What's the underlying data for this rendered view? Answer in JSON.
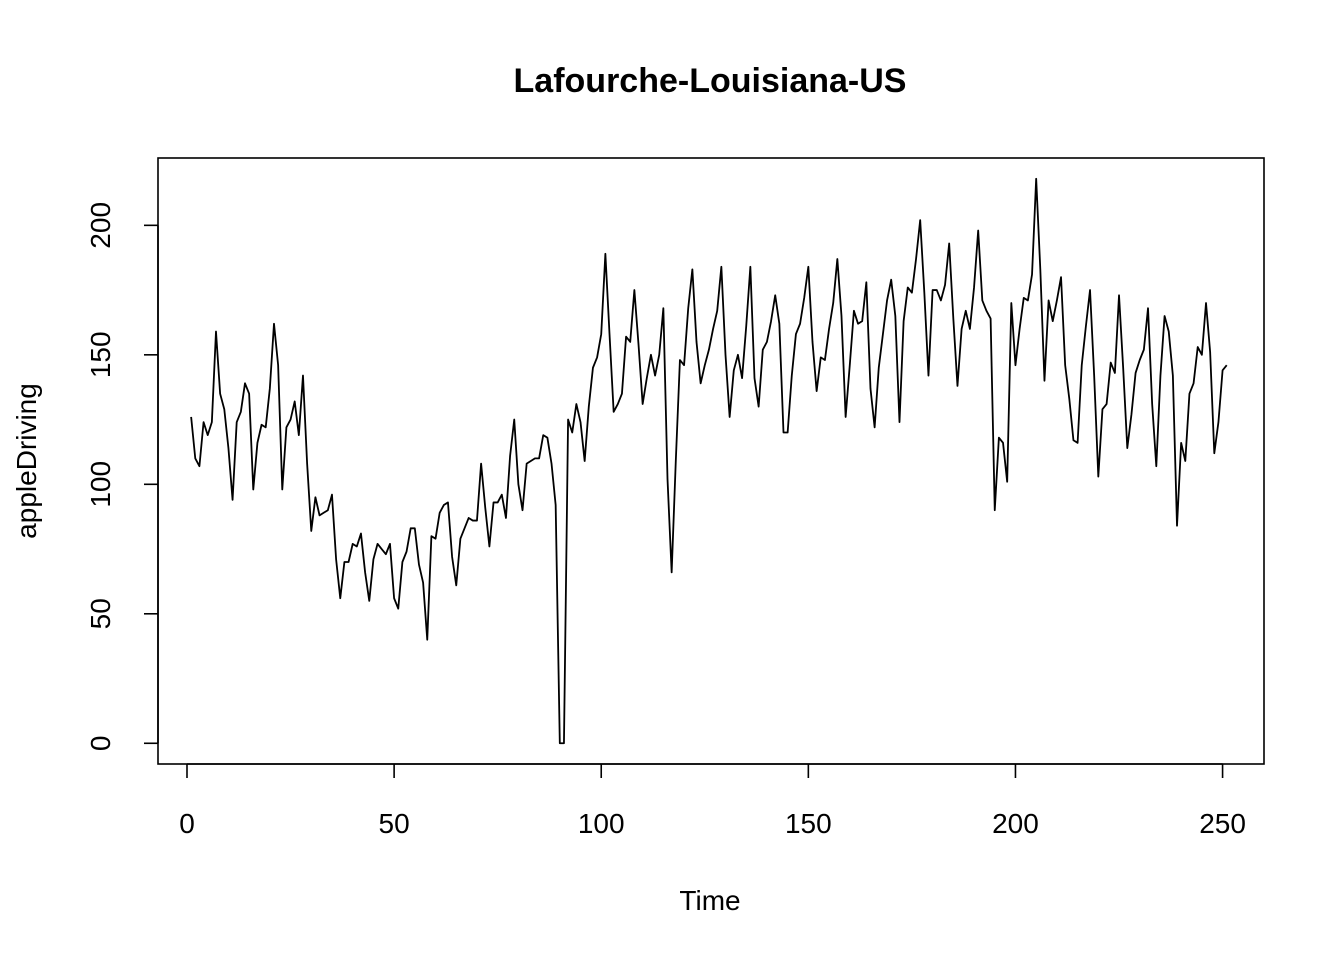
{
  "chart_data": {
    "type": "line",
    "title": "Lafourche-Louisiana-US",
    "xlabel": "Time",
    "ylabel": "appleDriving",
    "xlim": [
      -7,
      260
    ],
    "ylim": [
      -8,
      226
    ],
    "x_ticks": [
      0,
      50,
      100,
      150,
      200,
      250
    ],
    "y_ticks": [
      0,
      50,
      100,
      150,
      200
    ],
    "grid": false,
    "legend": "none",
    "line_color": "#000000",
    "series": [
      {
        "x_start": 1,
        "values": [
          126,
          110,
          107,
          124,
          119,
          124,
          159,
          135,
          129,
          114,
          94,
          124,
          128,
          139,
          135,
          98,
          116,
          123,
          122,
          137,
          162,
          146,
          98,
          122,
          125,
          132,
          119,
          142,
          108,
          82,
          95,
          88,
          89,
          90,
          96,
          71,
          56,
          70,
          70,
          77,
          76,
          81,
          66,
          55,
          71,
          77,
          75,
          73,
          77,
          56,
          52,
          70,
          74,
          83,
          83,
          69,
          62,
          40,
          80,
          79,
          89,
          92,
          93,
          72,
          61,
          79,
          83,
          87,
          86,
          86,
          108,
          91,
          76,
          93,
          93,
          96,
          87,
          111,
          125,
          100,
          90,
          108,
          109,
          110,
          110,
          119,
          118,
          108,
          92,
          0,
          0,
          125,
          120,
          131,
          124,
          109,
          130,
          145,
          149,
          158,
          189,
          158,
          128,
          131,
          135,
          157,
          155,
          175,
          154,
          131,
          141,
          150,
          142,
          150,
          168,
          102,
          66,
          109,
          148,
          146,
          168,
          183,
          155,
          139,
          146,
          152,
          160,
          167,
          184,
          150,
          126,
          144,
          150,
          141,
          161,
          184,
          141,
          130,
          152,
          155,
          163,
          173,
          162,
          120,
          120,
          142,
          158,
          162,
          172,
          184,
          155,
          136,
          149,
          148,
          160,
          170,
          187,
          165,
          126,
          146,
          167,
          162,
          163,
          178,
          137,
          122,
          145,
          158,
          171,
          179,
          165,
          124,
          163,
          176,
          174,
          187,
          202,
          174,
          142,
          175,
          175,
          171,
          177,
          193,
          164,
          138,
          160,
          167,
          160,
          176,
          198,
          171,
          167,
          164,
          90,
          118,
          116,
          101,
          170,
          146,
          160,
          172,
          171,
          181,
          218,
          183,
          140,
          171,
          163,
          171,
          180,
          146,
          133,
          117,
          116,
          146,
          161,
          175,
          142,
          103,
          129,
          131,
          147,
          143,
          173,
          145,
          114,
          127,
          143,
          148,
          152,
          168,
          131,
          107,
          142,
          165,
          159,
          142,
          84,
          116,
          109,
          135,
          139,
          153,
          150,
          170,
          151,
          112,
          124,
          144,
          146
        ]
      }
    ]
  }
}
